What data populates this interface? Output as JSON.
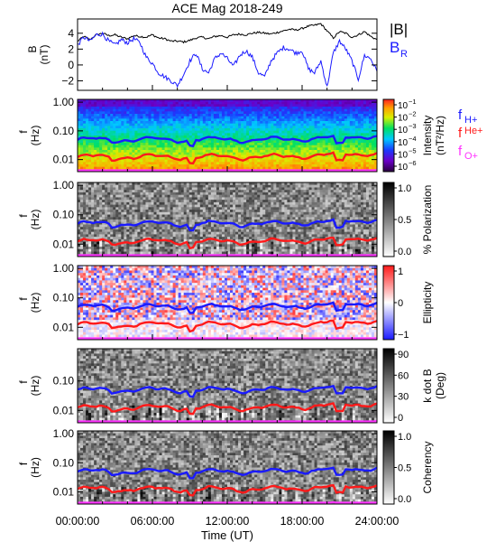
{
  "chart_data": {
    "title": "ACE Mag 2018-249",
    "xlabel": "Time (UT)",
    "x_ticks": [
      "00:00:00",
      "06:00:00",
      "12:00:00",
      "18:00:00",
      "24:00:00"
    ],
    "xlim_hours": [
      0,
      24
    ],
    "panels": [
      {
        "id": "b-field",
        "type": "line",
        "ylabel": "B",
        "yunits": "(nT)",
        "ylim": [
          -3.2,
          5.8
        ],
        "y_ticks": [
          "4",
          "2",
          "0",
          "−2"
        ],
        "y_tick_values": [
          4,
          2,
          0,
          -2
        ],
        "legend": [
          {
            "label": "|B|",
            "color": "#000000"
          },
          {
            "label": "B",
            "sub": "R",
            "color": "#1a1aff"
          }
        ],
        "series": [
          {
            "key": "Btot",
            "color": "#000000",
            "x": [
              0,
              0.5,
              1,
              1.5,
              2,
              2.5,
              3,
              3.5,
              4,
              4.5,
              5,
              5.5,
              6,
              6.5,
              7,
              7.5,
              8,
              8.5,
              9,
              9.5,
              10,
              10.5,
              11,
              11.5,
              12,
              12.5,
              13,
              13.5,
              14,
              14.5,
              15,
              15.5,
              16,
              16.5,
              17,
              17.5,
              18,
              18.5,
              19,
              19.5,
              20,
              20.5,
              21,
              21.5,
              22,
              22.5,
              23,
              23.5,
              24
            ],
            "y": [
              3.0,
              3.6,
              3.2,
              3.8,
              4.0,
              3.7,
              3.8,
              3.5,
              3.3,
              3.7,
              3.6,
              3.5,
              3.8,
              3.4,
              3.3,
              3.0,
              3.0,
              2.9,
              3.1,
              3.4,
              3.5,
              3.3,
              3.6,
              3.7,
              3.5,
              3.8,
              3.9,
              3.8,
              4.0,
              4.1,
              4.0,
              3.9,
              4.1,
              4.3,
              4.5,
              4.4,
              4.6,
              4.9,
              5.0,
              5.2,
              4.3,
              3.4,
              4.2,
              4.0,
              3.5,
              3.8,
              4.2,
              3.6,
              3.2
            ]
          },
          {
            "key": "BR",
            "color": "#1a1aff",
            "x": [
              0,
              0.5,
              1,
              1.5,
              2,
              2.5,
              3,
              3.5,
              4,
              4.5,
              5,
              5.5,
              6,
              6.5,
              7,
              7.5,
              8,
              8.5,
              9,
              9.5,
              10,
              10.5,
              11,
              11.5,
              12,
              12.5,
              13,
              13.5,
              14,
              14.5,
              15,
              15.5,
              16,
              16.5,
              17,
              17.5,
              18,
              18.5,
              19,
              19.5,
              20,
              20.5,
              21,
              21.5,
              22,
              22.5,
              23,
              23.5,
              24
            ],
            "y": [
              2.5,
              3.5,
              3.0,
              3.8,
              3.9,
              3.0,
              2.5,
              3.2,
              2.8,
              3.3,
              2.8,
              1.0,
              0.2,
              -1.0,
              -1.5,
              -2.0,
              -2.6,
              -1.2,
              0.5,
              1.5,
              -0.5,
              -1.0,
              0.8,
              1.5,
              0.8,
              -0.2,
              1.2,
              1.8,
              1.0,
              -1.0,
              -1.5,
              0.5,
              1.5,
              2.2,
              2.0,
              1.5,
              1.8,
              -0.5,
              -1.0,
              0.5,
              -2.8,
              1.5,
              3.0,
              2.0,
              0.5,
              -1.8,
              1.2,
              0.8,
              -0.8
            ]
          }
        ]
      },
      {
        "id": "intensity",
        "type": "heatmap",
        "ylabel": "f",
        "yunits": "(Hz)",
        "y_ticks": [
          "1.00",
          "0.10",
          "0.01"
        ],
        "colorbar": {
          "scheme": "rainbow",
          "label": "Intensity",
          "units": "(nT²/Hz)",
          "ticks": [
            {
              "base": "10",
              "exp": "−1"
            },
            {
              "base": "10",
              "exp": "−2"
            },
            {
              "base": "10",
              "exp": "−3"
            },
            {
              "base": "10",
              "exp": "−4"
            },
            {
              "base": "10",
              "exp": "−5"
            },
            {
              "base": "10",
              "exp": "−6"
            }
          ]
        },
        "legend": [
          {
            "label": "f",
            "sub": "H+",
            "color": "#1a1aff"
          },
          {
            "label": "f",
            "sub": "He+",
            "color": "#ff1a1a"
          },
          {
            "label": "f",
            "sub": "O+",
            "color": "#ff33ff"
          }
        ]
      },
      {
        "id": "polarization",
        "type": "heatmap",
        "ylabel": "f",
        "yunits": "(Hz)",
        "y_ticks": [
          "1.00",
          "0.10",
          "0.01"
        ],
        "colorbar": {
          "scheme": "gray",
          "label": "% Polarization",
          "units": "",
          "ticks": [
            "1.0",
            "0.5",
            "0.0"
          ]
        }
      },
      {
        "id": "ellipticity",
        "type": "heatmap",
        "ylabel": "f",
        "yunits": "(Hz)",
        "y_ticks": [
          "1.00",
          "0.10",
          "0.01"
        ],
        "colorbar": {
          "scheme": "bwr",
          "label": "Ellipticity",
          "units": "",
          "ticks": [
            "1",
            "0",
            "−1"
          ]
        }
      },
      {
        "id": "kdotb",
        "type": "heatmap",
        "ylabel": "f",
        "yunits": "(Hz)",
        "y_ticks": [
          "0.10",
          "0.01"
        ],
        "colorbar": {
          "scheme": "gray",
          "label": "k dot B",
          "units": "(Deg)",
          "ticks": [
            "90",
            "60",
            "30",
            "0"
          ]
        }
      },
      {
        "id": "coherency",
        "type": "heatmap",
        "ylabel": "f",
        "yunits": "(Hz)",
        "y_ticks": [
          "1.00",
          "0.10",
          "0.01"
        ],
        "colorbar": {
          "scheme": "gray",
          "label": "Coherency",
          "units": "",
          "ticks": [
            "1.0",
            "0.5",
            "0.0"
          ]
        }
      }
    ]
  }
}
